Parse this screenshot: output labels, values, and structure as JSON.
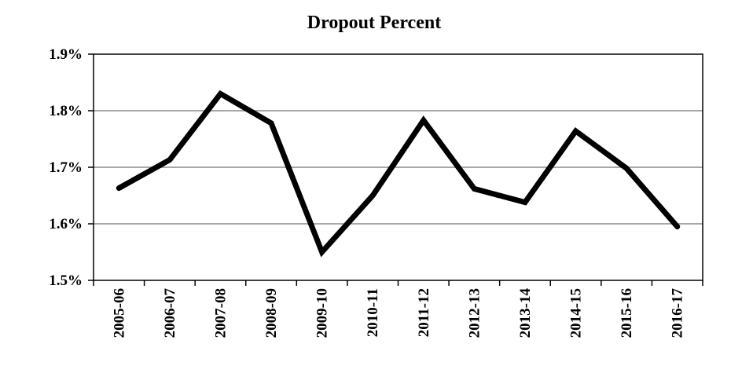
{
  "chart_data": {
    "type": "line",
    "title": "Dropout Percent",
    "xlabel": "",
    "ylabel": "",
    "categories": [
      "2005-06",
      "2006-07",
      "2007-08",
      "2008-09",
      "2009-10",
      "2010-11",
      "2011-12",
      "2012-13",
      "2013-14",
      "2014-15",
      "2015-16",
      "2016-17"
    ],
    "series": [
      {
        "values": [
          1.663,
          1.713,
          1.83,
          1.778,
          1.55,
          1.65,
          1.783,
          1.662,
          1.638,
          1.764,
          1.698,
          1.595
        ],
        "color": "#000000"
      }
    ],
    "ylim": [
      1.5,
      1.9
    ],
    "yticks": [
      "1.5%",
      "1.6%",
      "1.7%",
      "1.8%",
      "1.9%"
    ],
    "ytick_values": [
      1.5,
      1.6,
      1.7,
      1.8,
      1.9
    ],
    "grid": true,
    "legend": "none"
  }
}
